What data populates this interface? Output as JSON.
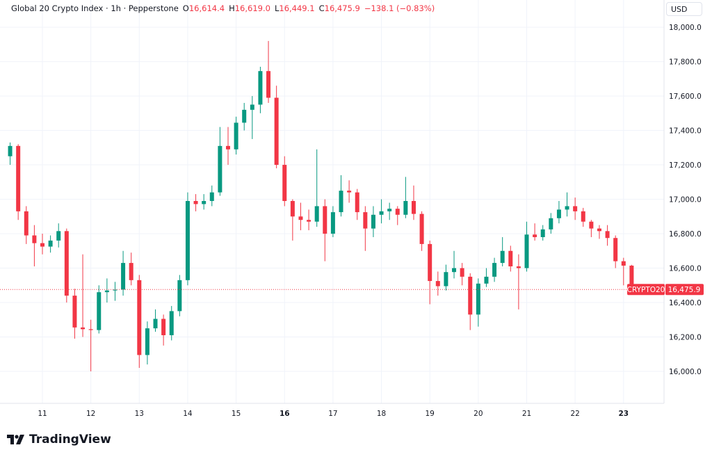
{
  "header": {
    "symbol_title": "Global 20 Crypto Index · 1h · Pepperstone",
    "o_label": "O",
    "o_value": "16,614.4",
    "h_label": "H",
    "h_value": "16,619.0",
    "l_label": "L",
    "l_value": "16,449.1",
    "c_label": "C",
    "c_value": "16,475.9",
    "change": "−138.1 (−0.83%)"
  },
  "currency_button": "USD",
  "last_price": {
    "ticker": "CRYPTO20",
    "value": "16,475.9"
  },
  "branding": {
    "logo_text": "TradingView"
  },
  "colors": {
    "up": "#089981",
    "down": "#f23645",
    "grid": "#f0f3fa",
    "text": "#131722"
  },
  "chart_data": {
    "type": "candlestick",
    "title": "Global 20 Crypto Index",
    "interval": "1h",
    "ylim": [
      15814,
      18158
    ],
    "y_ticks": [
      16000,
      16200,
      16400,
      16600,
      16800,
      17000,
      17200,
      17400,
      17600,
      17800,
      18000
    ],
    "y_tick_labels": [
      "16,000.0",
      "16,200.0",
      "16,400.0",
      "16,600.0",
      "16,800.0",
      "17,000.0",
      "17,200.0",
      "17,400.0",
      "17,600.0",
      "17,800.0",
      "18,000.0"
    ],
    "x_tick_labels": [
      "11",
      "12",
      "13",
      "14",
      "15",
      "16",
      "17",
      "18",
      "19",
      "20",
      "21",
      "22",
      "23"
    ],
    "x_tick_bold": [
      "16",
      "23"
    ],
    "grid": true,
    "last_value": 16475.9,
    "candles_ohlc": [
      [
        17250,
        17330,
        17200,
        17310
      ],
      [
        17310,
        17320,
        16880,
        16930
      ],
      [
        16930,
        16960,
        16740,
        16790
      ],
      [
        16790,
        16850,
        16610,
        16745
      ],
      [
        16745,
        16800,
        16680,
        16725
      ],
      [
        16725,
        16790,
        16690,
        16760
      ],
      [
        16760,
        16860,
        16720,
        16815
      ],
      [
        16815,
        16830,
        16400,
        16440
      ],
      [
        16440,
        16480,
        16190,
        16255
      ],
      [
        16255,
        16680,
        16200,
        16245
      ],
      [
        16245,
        16300,
        16000,
        16240
      ],
      [
        16240,
        16500,
        16220,
        16460
      ],
      [
        16460,
        16540,
        16400,
        16470
      ],
      [
        16470,
        16520,
        16410,
        16475
      ],
      [
        16475,
        16700,
        16440,
        16630
      ],
      [
        16630,
        16690,
        16500,
        16530
      ],
      [
        16530,
        16560,
        16020,
        16095
      ],
      [
        16095,
        16290,
        16040,
        16250
      ],
      [
        16250,
        16360,
        16230,
        16305
      ],
      [
        16305,
        16330,
        16150,
        16210
      ],
      [
        16210,
        16380,
        16180,
        16350
      ],
      [
        16350,
        16560,
        16320,
        16530
      ],
      [
        16530,
        17040,
        16500,
        16990
      ],
      [
        16990,
        17030,
        16930,
        16972
      ],
      [
        16972,
        17030,
        16940,
        16990
      ],
      [
        16990,
        17080,
        16960,
        17040
      ],
      [
        17040,
        17420,
        17020,
        17310
      ],
      [
        17310,
        17420,
        17200,
        17290
      ],
      [
        17290,
        17480,
        17260,
        17445
      ],
      [
        17445,
        17560,
        17400,
        17520
      ],
      [
        17520,
        17600,
        17350,
        17550
      ],
      [
        17550,
        17770,
        17500,
        17745
      ],
      [
        17745,
        17920,
        17560,
        17590
      ],
      [
        17590,
        17660,
        17180,
        17200
      ],
      [
        17200,
        17250,
        16960,
        16990
      ],
      [
        16990,
        17000,
        16760,
        16900
      ],
      [
        16900,
        16980,
        16820,
        16880
      ],
      [
        16880,
        16940,
        16820,
        16870
      ],
      [
        16870,
        17290,
        16840,
        16960
      ],
      [
        16960,
        17000,
        16640,
        16800
      ],
      [
        16800,
        16960,
        16780,
        16925
      ],
      [
        16925,
        17140,
        16900,
        17050
      ],
      [
        17050,
        17110,
        16980,
        17040
      ],
      [
        17040,
        17060,
        16880,
        16925
      ],
      [
        16925,
        16960,
        16700,
        16830
      ],
      [
        16830,
        16960,
        16780,
        16910
      ],
      [
        16910,
        17000,
        16860,
        16930
      ],
      [
        16930,
        16980,
        16880,
        16945
      ],
      [
        16945,
        16960,
        16850,
        16910
      ],
      [
        16910,
        17130,
        16890,
        16990
      ],
      [
        16990,
        17080,
        16880,
        16915
      ],
      [
        16915,
        16930,
        16700,
        16740
      ],
      [
        16740,
        16760,
        16390,
        16525
      ],
      [
        16525,
        16580,
        16440,
        16495
      ],
      [
        16495,
        16620,
        16470,
        16577
      ],
      [
        16577,
        16700,
        16540,
        16600
      ],
      [
        16600,
        16630,
        16500,
        16550
      ],
      [
        16550,
        16570,
        16240,
        16330
      ],
      [
        16330,
        16540,
        16260,
        16510
      ],
      [
        16510,
        16600,
        16490,
        16550
      ],
      [
        16550,
        16660,
        16520,
        16630
      ],
      [
        16630,
        16780,
        16610,
        16700
      ],
      [
        16700,
        16730,
        16580,
        16610
      ],
      [
        16610,
        16680,
        16360,
        16600
      ],
      [
        16600,
        16870,
        16580,
        16795
      ],
      [
        16795,
        16860,
        16760,
        16780
      ],
      [
        16780,
        16850,
        16760,
        16825
      ],
      [
        16825,
        16920,
        16800,
        16890
      ],
      [
        16890,
        16990,
        16860,
        16940
      ],
      [
        16940,
        17040,
        16900,
        16960
      ],
      [
        16960,
        17010,
        16880,
        16930
      ],
      [
        16930,
        16950,
        16840,
        16870
      ],
      [
        16870,
        16880,
        16780,
        16830
      ],
      [
        16830,
        16850,
        16770,
        16815
      ],
      [
        16815,
        16850,
        16730,
        16775
      ],
      [
        16775,
        16790,
        16600,
        16640
      ],
      [
        16640,
        16660,
        16500,
        16614.4
      ],
      [
        16614.4,
        16619.0,
        16449.1,
        16475.9
      ]
    ]
  }
}
